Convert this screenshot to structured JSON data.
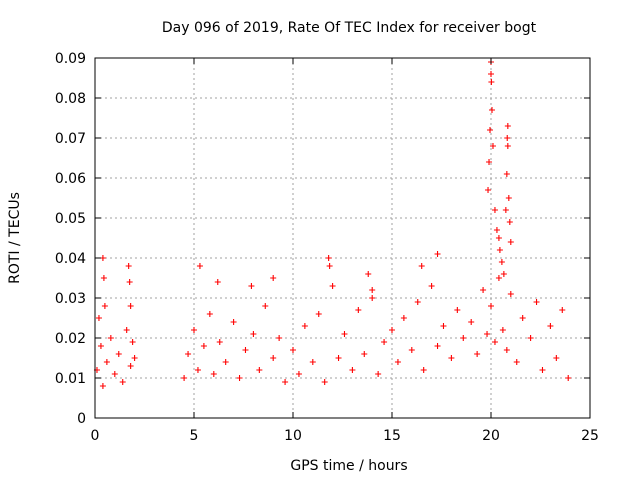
{
  "chart_data": {
    "type": "scatter",
    "title": "Day 096 of 2019, Rate Of TEC Index for receiver bogt",
    "xlabel": "GPS time / hours",
    "ylabel": "ROTI / TECUs",
    "xlim": [
      0,
      25
    ],
    "ylim": [
      0,
      0.09
    ],
    "x_ticks": [
      0,
      5,
      10,
      15,
      20,
      25
    ],
    "x_tick_labels": [
      "0",
      "5",
      "10",
      "15",
      "20",
      "25"
    ],
    "y_ticks": [
      0,
      0.01,
      0.02,
      0.03,
      0.04,
      0.05,
      0.06,
      0.07,
      0.08,
      0.09
    ],
    "y_tick_labels": [
      "0",
      "0.01",
      "0.02",
      "0.03",
      "0.04",
      "0.05",
      "0.06",
      "0.07",
      "0.08",
      "0.09"
    ],
    "grid": true,
    "marker": "plus",
    "marker_color": "#ff0000",
    "series": [
      {
        "name": "ROTI",
        "x": [
          0.1,
          0.2,
          0.3,
          0.4,
          0.5,
          0.6,
          0.8,
          1.0,
          1.2,
          1.4,
          1.6,
          1.8,
          1.9,
          2.0,
          4.5,
          4.7,
          5.0,
          5.2,
          5.5,
          5.8,
          6.0,
          6.3,
          6.6,
          7.0,
          7.3,
          7.6,
          8.0,
          8.3,
          8.6,
          9.0,
          9.3,
          9.6,
          10.0,
          10.3,
          10.6,
          11.0,
          11.3,
          11.6,
          12.0,
          12.3,
          12.6,
          13.0,
          13.3,
          13.6,
          14.0,
          14.3,
          14.6,
          15.0,
          15.3,
          15.6,
          16.0,
          16.3,
          16.6,
          17.0,
          17.3,
          17.6,
          18.0,
          18.3,
          18.6,
          19.0,
          19.3,
          19.6,
          19.8,
          20.0,
          20.2,
          20.4,
          20.6,
          20.8,
          21.0,
          21.3,
          21.6,
          22.0,
          22.3,
          22.6,
          23.0,
          23.3,
          23.6,
          23.9,
          19.85,
          19.9,
          19.95,
          20.0,
          20.0,
          20.02,
          20.05,
          20.1,
          20.2,
          20.3,
          20.4,
          20.45,
          20.55,
          20.65,
          20.75,
          20.8,
          20.82,
          20.85,
          20.85,
          20.9,
          20.95,
          21.0,
          0.4,
          0.45,
          1.7,
          1.75,
          1.8,
          5.3,
          11.8,
          11.85,
          13.8,
          16.5,
          17.3,
          9.0,
          7.9,
          6.2,
          14.0
        ],
        "y": [
          0.012,
          0.025,
          0.018,
          0.008,
          0.028,
          0.014,
          0.02,
          0.011,
          0.016,
          0.009,
          0.022,
          0.013,
          0.019,
          0.015,
          0.01,
          0.016,
          0.022,
          0.012,
          0.018,
          0.026,
          0.011,
          0.019,
          0.014,
          0.024,
          0.01,
          0.017,
          0.021,
          0.012,
          0.028,
          0.015,
          0.02,
          0.009,
          0.017,
          0.011,
          0.023,
          0.014,
          0.026,
          0.009,
          0.033,
          0.015,
          0.021,
          0.012,
          0.027,
          0.016,
          0.03,
          0.011,
          0.019,
          0.022,
          0.014,
          0.025,
          0.017,
          0.029,
          0.012,
          0.033,
          0.018,
          0.023,
          0.015,
          0.027,
          0.02,
          0.024,
          0.016,
          0.032,
          0.021,
          0.028,
          0.019,
          0.035,
          0.022,
          0.017,
          0.031,
          0.014,
          0.025,
          0.02,
          0.029,
          0.012,
          0.023,
          0.015,
          0.027,
          0.01,
          0.057,
          0.064,
          0.072,
          0.089,
          0.086,
          0.084,
          0.077,
          0.068,
          0.052,
          0.047,
          0.045,
          0.042,
          0.039,
          0.036,
          0.052,
          0.061,
          0.07,
          0.073,
          0.068,
          0.055,
          0.049,
          0.044,
          0.04,
          0.035,
          0.038,
          0.034,
          0.028,
          0.038,
          0.04,
          0.038,
          0.036,
          0.038,
          0.041,
          0.035,
          0.033,
          0.034,
          0.032
        ]
      }
    ]
  }
}
